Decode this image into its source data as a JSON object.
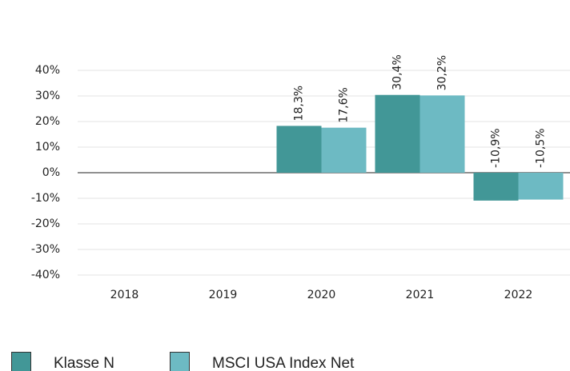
{
  "chart_data": {
    "type": "bar",
    "categories": [
      "2018",
      "2019",
      "2020",
      "2021",
      "2022"
    ],
    "series": [
      {
        "name": "Klasse N",
        "color": "#429797",
        "values": [
          null,
          null,
          18.3,
          30.4,
          -10.9
        ],
        "value_labels": [
          null,
          null,
          "18,3%",
          "30,4%",
          "-10,9%"
        ]
      },
      {
        "name": "MSCI USA Index Net",
        "color": "#6dbac3",
        "values": [
          null,
          null,
          17.6,
          30.2,
          -10.5
        ],
        "value_labels": [
          null,
          null,
          "17,6%",
          "30,2%",
          "-10,5%"
        ]
      }
    ],
    "ylim": [
      -40,
      40
    ],
    "yticks": [
      {
        "value": -40,
        "label": "-40%"
      },
      {
        "value": -30,
        "label": "-30%"
      },
      {
        "value": -20,
        "label": "-20%"
      },
      {
        "value": -10,
        "label": "-10%"
      },
      {
        "value": 0,
        "label": "0%"
      },
      {
        "value": 10,
        "label": "10%"
      },
      {
        "value": 20,
        "label": "20%"
      },
      {
        "value": 30,
        "label": "30%"
      },
      {
        "value": 40,
        "label": "40%"
      }
    ],
    "grid": true,
    "legend": "bottom-left"
  }
}
